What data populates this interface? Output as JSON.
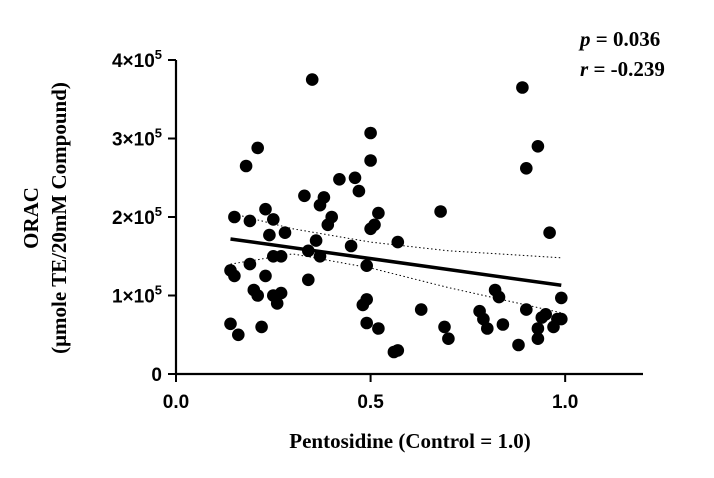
{
  "chart_data": {
    "type": "scatter",
    "xlabel": "Pentosidine (Control = 1.0)",
    "ylabel_line1": "ORAC",
    "ylabel_line2": "(μmole TE/20mM Compound)",
    "xlim": [
      0,
      1.2
    ],
    "ylim": [
      0,
      400000
    ],
    "x_ticks": [
      0,
      0.5,
      1.0
    ],
    "x_tick_labels": [
      "0.0",
      "0.5",
      "1.0"
    ],
    "y_ticks": [
      0,
      100000,
      200000,
      300000,
      400000
    ],
    "y_tick_labels": [
      {
        "mant": "0",
        "exp": ""
      },
      {
        "mant": "1×10",
        "exp": "5"
      },
      {
        "mant": "2×10",
        "exp": "5"
      },
      {
        "mant": "3×10",
        "exp": "5"
      },
      {
        "mant": "4×10",
        "exp": "5"
      }
    ],
    "stats": {
      "p_label": "p",
      "p_value": " = 0.036",
      "r_label": "r",
      "r_value": " = -0.239"
    },
    "fit_line": {
      "x": [
        0.14,
        0.99
      ],
      "y": [
        172000,
        113000
      ]
    },
    "ci_upper": {
      "x": [
        0.14,
        0.3,
        0.5,
        0.7,
        0.99
      ],
      "y": [
        205000,
        185000,
        168000,
        157000,
        148000
      ]
    },
    "ci_lower": {
      "x": [
        0.14,
        0.3,
        0.5,
        0.7,
        0.99
      ],
      "y": [
        140000,
        153000,
        135000,
        110000,
        78000
      ]
    },
    "points": [
      {
        "x": 0.14,
        "y": 132000
      },
      {
        "x": 0.14,
        "y": 64000
      },
      {
        "x": 0.15,
        "y": 125000
      },
      {
        "x": 0.15,
        "y": 200000
      },
      {
        "x": 0.16,
        "y": 50000
      },
      {
        "x": 0.18,
        "y": 265000
      },
      {
        "x": 0.19,
        "y": 195000
      },
      {
        "x": 0.19,
        "y": 140000
      },
      {
        "x": 0.2,
        "y": 107000
      },
      {
        "x": 0.21,
        "y": 288000
      },
      {
        "x": 0.21,
        "y": 100000
      },
      {
        "x": 0.22,
        "y": 60000
      },
      {
        "x": 0.23,
        "y": 210000
      },
      {
        "x": 0.23,
        "y": 125000
      },
      {
        "x": 0.24,
        "y": 177000
      },
      {
        "x": 0.25,
        "y": 197000
      },
      {
        "x": 0.25,
        "y": 150000
      },
      {
        "x": 0.25,
        "y": 100000
      },
      {
        "x": 0.26,
        "y": 90000
      },
      {
        "x": 0.27,
        "y": 150000
      },
      {
        "x": 0.27,
        "y": 103000
      },
      {
        "x": 0.28,
        "y": 180000
      },
      {
        "x": 0.33,
        "y": 227000
      },
      {
        "x": 0.34,
        "y": 157000
      },
      {
        "x": 0.34,
        "y": 120000
      },
      {
        "x": 0.35,
        "y": 375000
      },
      {
        "x": 0.36,
        "y": 170000
      },
      {
        "x": 0.37,
        "y": 150000
      },
      {
        "x": 0.37,
        "y": 215000
      },
      {
        "x": 0.38,
        "y": 225000
      },
      {
        "x": 0.39,
        "y": 190000
      },
      {
        "x": 0.4,
        "y": 200000
      },
      {
        "x": 0.42,
        "y": 248000
      },
      {
        "x": 0.45,
        "y": 163000
      },
      {
        "x": 0.46,
        "y": 250000
      },
      {
        "x": 0.47,
        "y": 233000
      },
      {
        "x": 0.48,
        "y": 88000
      },
      {
        "x": 0.49,
        "y": 95000
      },
      {
        "x": 0.49,
        "y": 65000
      },
      {
        "x": 0.49,
        "y": 138000
      },
      {
        "x": 0.5,
        "y": 185000
      },
      {
        "x": 0.5,
        "y": 272000
      },
      {
        "x": 0.5,
        "y": 307000
      },
      {
        "x": 0.51,
        "y": 190000
      },
      {
        "x": 0.52,
        "y": 205000
      },
      {
        "x": 0.52,
        "y": 58000
      },
      {
        "x": 0.56,
        "y": 28000
      },
      {
        "x": 0.57,
        "y": 30000
      },
      {
        "x": 0.57,
        "y": 168000
      },
      {
        "x": 0.63,
        "y": 82000
      },
      {
        "x": 0.68,
        "y": 207000
      },
      {
        "x": 0.69,
        "y": 60000
      },
      {
        "x": 0.7,
        "y": 45000
      },
      {
        "x": 0.78,
        "y": 80000
      },
      {
        "x": 0.79,
        "y": 70000
      },
      {
        "x": 0.8,
        "y": 58000
      },
      {
        "x": 0.82,
        "y": 107000
      },
      {
        "x": 0.83,
        "y": 98000
      },
      {
        "x": 0.84,
        "y": 63000
      },
      {
        "x": 0.88,
        "y": 37000
      },
      {
        "x": 0.89,
        "y": 365000
      },
      {
        "x": 0.9,
        "y": 262000
      },
      {
        "x": 0.9,
        "y": 82000
      },
      {
        "x": 0.93,
        "y": 290000
      },
      {
        "x": 0.93,
        "y": 45000
      },
      {
        "x": 0.93,
        "y": 58000
      },
      {
        "x": 0.94,
        "y": 72000
      },
      {
        "x": 0.95,
        "y": 76000
      },
      {
        "x": 0.96,
        "y": 180000
      },
      {
        "x": 0.97,
        "y": 60000
      },
      {
        "x": 0.98,
        "y": 70000
      },
      {
        "x": 0.99,
        "y": 97000
      },
      {
        "x": 0.99,
        "y": 70000
      }
    ]
  }
}
